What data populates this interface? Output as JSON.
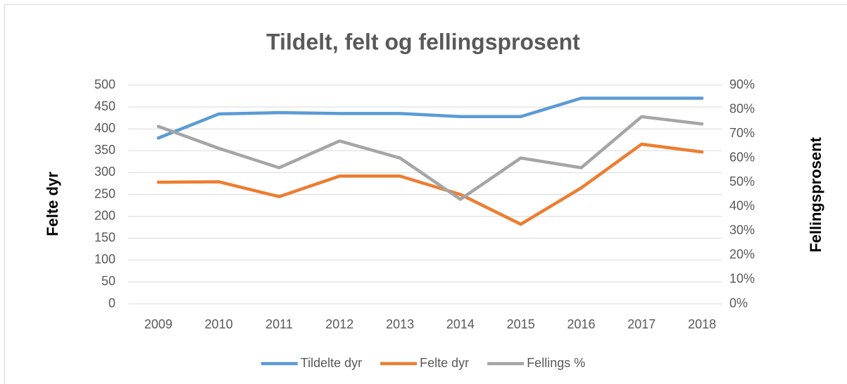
{
  "chart_data": {
    "type": "line",
    "title": "Tildelt, felt og fellingsprosent",
    "ylabel": "Felte dyr",
    "y2label": "Fellingsprosent",
    "categories": [
      "2009",
      "2010",
      "2011",
      "2012",
      "2013",
      "2014",
      "2015",
      "2016",
      "2017",
      "2018"
    ],
    "series": [
      {
        "name": "Tildelte dyr",
        "color": "#5b9bd5",
        "values": [
          379,
          434,
          437,
          435,
          435,
          428,
          428,
          470,
          470,
          470
        ]
      },
      {
        "name": "Felte dyr",
        "color": "#ed7d31",
        "values": [
          278,
          279,
          245,
          292,
          292,
          250,
          182,
          265,
          365,
          347
        ]
      },
      {
        "name": "Fellings %",
        "color": "#a5a5a5",
        "axis": "y2",
        "values": [
          73,
          64,
          56,
          67,
          60,
          43,
          60,
          56,
          77,
          74
        ]
      }
    ],
    "ylim": [
      0,
      500
    ],
    "yticks": [
      0,
      50,
      100,
      150,
      200,
      250,
      300,
      350,
      400,
      450,
      500
    ],
    "y2lim": [
      0,
      90
    ],
    "y2ticks": [
      {
        "value": 0,
        "label": "0%"
      },
      {
        "value": 10,
        "label": "10%"
      },
      {
        "value": 20,
        "label": "20%"
      },
      {
        "value": 30,
        "label": "30%"
      },
      {
        "value": 40,
        "label": "40%"
      },
      {
        "value": 50,
        "label": "50%"
      },
      {
        "value": 60,
        "label": "60%"
      },
      {
        "value": 70,
        "label": "70%"
      },
      {
        "value": 80,
        "label": "80%"
      },
      {
        "value": 90,
        "label": "90%"
      }
    ],
    "grid": true,
    "legend": "bottom"
  }
}
